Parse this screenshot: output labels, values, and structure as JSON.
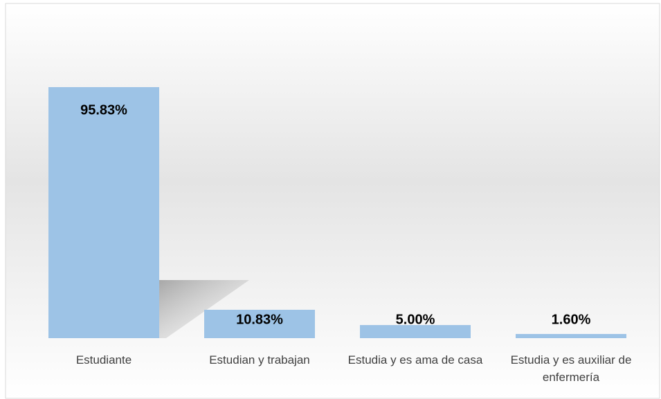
{
  "chart_data": {
    "type": "bar",
    "categories": [
      "Estudiante",
      "Estudian y trabajan",
      "Estudia y es ama de casa",
      "Estudia y es auxiliar de enfermería"
    ],
    "values": [
      95.83,
      10.83,
      5.0,
      1.6
    ],
    "value_labels": [
      "95.83%",
      "10.83%",
      "5.00%",
      "1.60%"
    ],
    "color": "#9dc3e6"
  }
}
